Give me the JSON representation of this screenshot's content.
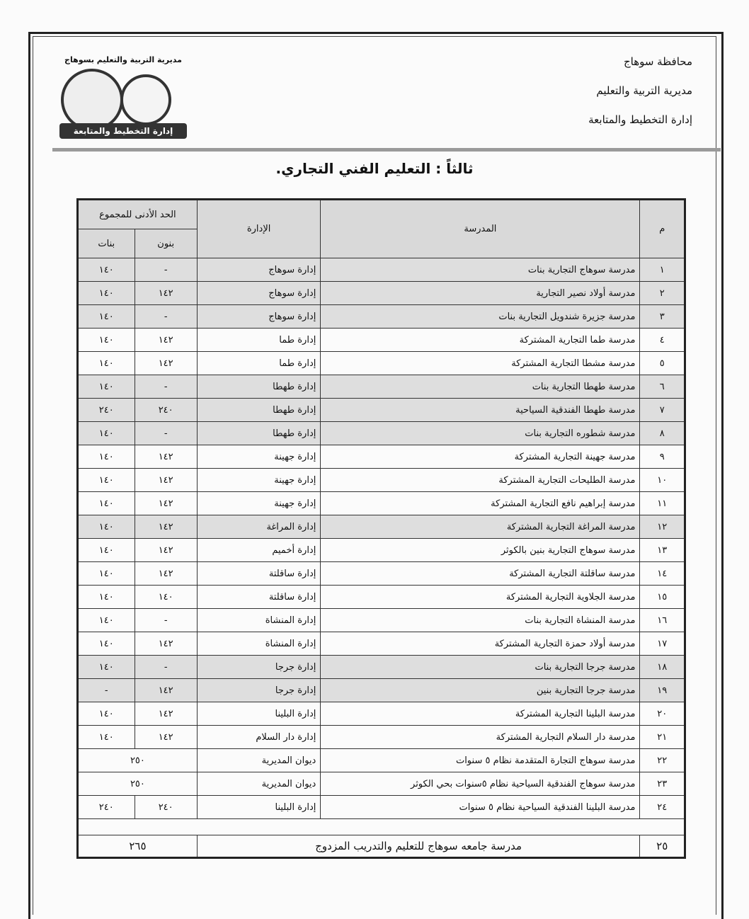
{
  "header": {
    "governorate": "محافظة سوهاج",
    "directorate": "مديرية التربية والتعليم",
    "department": "إدارة التخطيط والمتابعة"
  },
  "logo": {
    "title": "مديرية التربية والتعليم بسوهاج",
    "band": "إدارة التخطيط والمتابعة"
  },
  "section_title": "ثالثاً : التعليم الفني التجاري.",
  "table": {
    "headers": {
      "index": "م",
      "school": "المدرسة",
      "administration": "الإدارة",
      "min_total": "الحد الأدنى للمجموع",
      "boys": "بنون",
      "girls": "بنات"
    },
    "rows": [
      {
        "i": "١",
        "school": "مدرسة سوهاج التجارية بنات",
        "admin": "إدارة سوهاج",
        "boys": "-",
        "girls": "١٤٠"
      },
      {
        "i": "٢",
        "school": "مدرسة أولاد نصير التجارية",
        "admin": "إدارة سوهاج",
        "boys": "١٤٢",
        "girls": "١٤٠"
      },
      {
        "i": "٣",
        "school": "مدرسة جزيرة شندويل التجارية بنات",
        "admin": "إدارة سوهاج",
        "boys": "-",
        "girls": "١٤٠"
      },
      {
        "i": "٤",
        "school": "مدرسة طما التجارية المشتركة",
        "admin": "إدارة طما",
        "boys": "١٤٢",
        "girls": "١٤٠"
      },
      {
        "i": "٥",
        "school": "مدرسة مشطا التجارية المشتركة",
        "admin": "إدارة طما",
        "boys": "١٤٢",
        "girls": "١٤٠"
      },
      {
        "i": "٦",
        "school": "مدرسة طهطا التجارية بنات",
        "admin": "إدارة طهطا",
        "boys": "-",
        "girls": "١٤٠"
      },
      {
        "i": "٧",
        "school": "مدرسة طهطا الفندقية السياحية",
        "admin": "إدارة طهطا",
        "boys": "٢٤٠",
        "girls": "٢٤٠"
      },
      {
        "i": "٨",
        "school": "مدرسة شطوره التجارية بنات",
        "admin": "إدارة طهطا",
        "boys": "-",
        "girls": "١٤٠"
      },
      {
        "i": "٩",
        "school": "مدرسة جهينة التجارية المشتركة",
        "admin": "إدارة جهينة",
        "boys": "١٤٢",
        "girls": "١٤٠"
      },
      {
        "i": "١٠",
        "school": "مدرسة الطليحات التجارية المشتركة",
        "admin": "إدارة جهينة",
        "boys": "١٤٢",
        "girls": "١٤٠"
      },
      {
        "i": "١١",
        "school": "مدرسة إبراهيم نافع التجارية المشتركة",
        "admin": "إدارة جهينة",
        "boys": "١٤٢",
        "girls": "١٤٠"
      },
      {
        "i": "١٢",
        "school": "مدرسة المراغة التجارية المشتركة",
        "admin": "إدارة المراغة",
        "boys": "١٤٢",
        "girls": "١٤٠"
      },
      {
        "i": "١٣",
        "school": "مدرسة سوهاج التجارية بنين بالكوثر",
        "admin": "إدارة أخميم",
        "boys": "١٤٢",
        "girls": "١٤٠"
      },
      {
        "i": "١٤",
        "school": "مدرسة ساقلتة التجارية المشتركة",
        "admin": "إدارة ساقلتة",
        "boys": "١٤٢",
        "girls": "١٤٠"
      },
      {
        "i": "١٥",
        "school": "مدرسة الجلاوية التجارية المشتركة",
        "admin": "إدارة ساقلتة",
        "boys": "١٤٠",
        "girls": "١٤٠"
      },
      {
        "i": "١٦",
        "school": "مدرسة المنشاة التجارية بنات",
        "admin": "إدارة المنشاة",
        "boys": "-",
        "girls": "١٤٠"
      },
      {
        "i": "١٧",
        "school": "مدرسة أولاد حمزة التجارية المشتركة",
        "admin": "إدارة المنشاة",
        "boys": "١٤٢",
        "girls": "١٤٠"
      },
      {
        "i": "١٨",
        "school": "مدرسة جرجا التجارية بنات",
        "admin": "إدارة جرجا",
        "boys": "-",
        "girls": "١٤٠"
      },
      {
        "i": "١٩",
        "school": "مدرسة جرجا التجارية بنين",
        "admin": "إدارة جرجا",
        "boys": "١٤٢",
        "girls": "-"
      },
      {
        "i": "٢٠",
        "school": "مدرسة البلينا التجارية المشتركة",
        "admin": "إدارة البلينا",
        "boys": "١٤٢",
        "girls": "١٤٠"
      },
      {
        "i": "٢١",
        "school": "مدرسة دار السلام التجارية المشتركة",
        "admin": "إدارة دار السلام",
        "boys": "١٤٢",
        "girls": "١٤٠"
      },
      {
        "i": "٢٢",
        "school": "مدرسة سوهاج التجارة المتقدمة نظام ٥ سنوات",
        "admin": "ديوان المديرية",
        "combined": "٢٥٠"
      },
      {
        "i": "٢٣",
        "school": "مدرسة سوهاج الفندقية السياحية نظام ٥سنوات بحي الكوثر",
        "admin": "ديوان المديرية",
        "combined": "٢٥٠"
      },
      {
        "i": "٢٤",
        "school": "مدرسة البلينا الفندقية السياحية نظام ٥ سنوات",
        "admin": "إدارة البلينا",
        "boys": "٢٤٠",
        "girls": "٢٤٠"
      }
    ],
    "last_row": {
      "i": "٢٥",
      "school": "مدرسة جامعه سوهاج للتعليم والتدريب المزدوج",
      "combined": "٢٦٥"
    }
  }
}
